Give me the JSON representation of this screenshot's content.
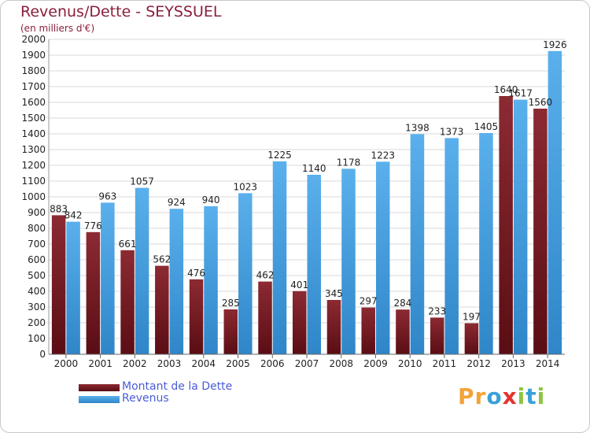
{
  "title": "Revenus/Dette - SEYSSUEL",
  "subtitle": "(en milliers d'€)",
  "brand": {
    "text": "Proxiti",
    "letters": [
      {
        "ch": "P",
        "color": "#f2a33a"
      },
      {
        "ch": "r",
        "color": "#f2a33a"
      },
      {
        "ch": "o",
        "color": "#3aa0d8"
      },
      {
        "ch": "x",
        "color": "#e3342f"
      },
      {
        "ch": "i",
        "color": "#8cc63f"
      },
      {
        "ch": "t",
        "color": "#3aa0d8"
      },
      {
        "ch": "i",
        "color": "#8cc63f"
      }
    ]
  },
  "colors": {
    "dette": "#7a1a22",
    "revenus": "#4aa3e0",
    "grid": "#d8d8d8",
    "title": "#8a1f3a"
  },
  "chart_data": {
    "type": "bar",
    "title": "Revenus/Dette - SEYSSUEL",
    "subtitle": "(en milliers d'€)",
    "categories": [
      "2000",
      "2001",
      "2002",
      "2003",
      "2004",
      "2005",
      "2006",
      "2007",
      "2008",
      "2009",
      "2010",
      "2011",
      "2012",
      "2013",
      "2014"
    ],
    "series": [
      {
        "name": "Montant de la Dette",
        "values": [
          883,
          776,
          661,
          562,
          476,
          285,
          462,
          401,
          345,
          297,
          284,
          233,
          197,
          1640,
          1560
        ]
      },
      {
        "name": "Revenus",
        "values": [
          842,
          963,
          1057,
          924,
          940,
          1023,
          1225,
          1140,
          1178,
          1223,
          1398,
          1373,
          1405,
          1617,
          1926
        ]
      }
    ],
    "value_labels": {
      "Montant de la Dette": [
        "883",
        "776",
        "661",
        "562",
        "476",
        "285",
        "462",
        "401",
        "345",
        "297",
        "284",
        "233",
        "197",
        "1640",
        "1560"
      ],
      "Revenus": [
        "842",
        "963",
        "1057",
        "924",
        "940",
        "1023",
        "1225",
        "1140",
        "1178",
        "1223",
        "1398",
        "1373",
        "1405",
        "1617",
        "1926"
      ]
    },
    "yticks": [
      0,
      100,
      200,
      300,
      400,
      500,
      600,
      700,
      800,
      900,
      1000,
      1100,
      1200,
      1300,
      1400,
      1500,
      1600,
      1700,
      1800,
      1900,
      2000
    ],
    "ylim": [
      0,
      2000
    ],
    "grid": true,
    "legend_position": "bottom-left"
  }
}
